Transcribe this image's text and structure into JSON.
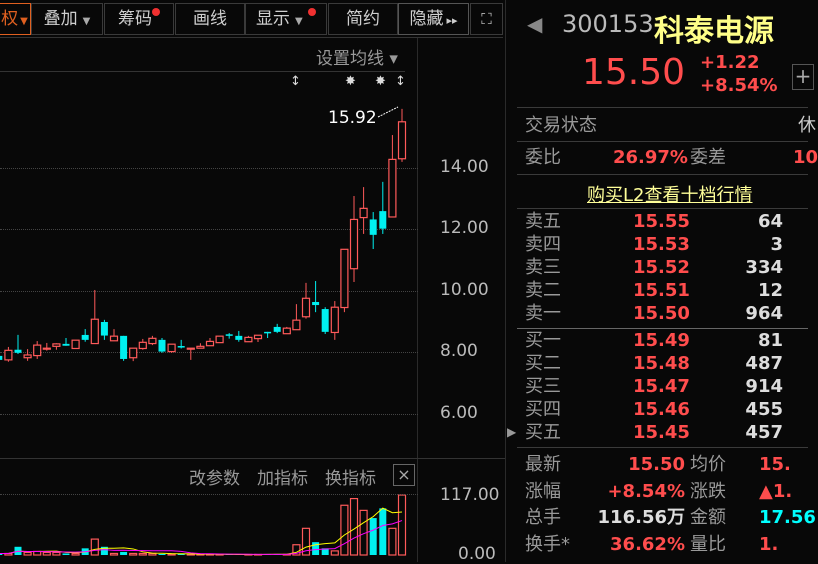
{
  "toolbar": {
    "items": [
      {
        "label": "权",
        "has_caret": true,
        "active": true
      },
      {
        "label": "叠加",
        "has_caret": true
      },
      {
        "label": "筹码",
        "has_dot": true
      },
      {
        "label": "画线"
      },
      {
        "label": "显示",
        "has_caret": true,
        "has_dot": true
      },
      {
        "label": "简约"
      },
      {
        "label": "隐藏",
        "suffix": "▸▸"
      }
    ],
    "fullscreen_icon": "expand-icon"
  },
  "chart": {
    "ma_setting": "设置均线 ▾",
    "high_marker": "15.92",
    "price_axis": [
      "14.00",
      "12.00",
      "10.00",
      "8.00",
      "6.00"
    ],
    "colors": {
      "up": "#ff5a5a",
      "down": "#00f0f0",
      "ma5": "#ffff00",
      "ma10": "#ff00ff"
    },
    "candles": [
      [
        7.9,
        7.77,
        7.9,
        7.64
      ],
      [
        7.77,
        8.08,
        8.19,
        7.71
      ],
      [
        8.1,
        8.0,
        8.58,
        7.96
      ],
      [
        7.84,
        7.93,
        8.12,
        7.74
      ],
      [
        7.91,
        8.25,
        8.38,
        7.8
      ],
      [
        8.13,
        8.15,
        8.32,
        8.07
      ],
      [
        8.21,
        8.29,
        8.31,
        8.1
      ],
      [
        8.29,
        8.23,
        8.48,
        8.23
      ],
      [
        8.14,
        8.41,
        8.41,
        8.14
      ],
      [
        8.58,
        8.42,
        8.77,
        8.36
      ],
      [
        8.3,
        9.09,
        10.04,
        8.3
      ],
      [
        9.0,
        8.56,
        9.07,
        8.42
      ],
      [
        8.39,
        8.54,
        8.77,
        8.39
      ],
      [
        8.55,
        7.8,
        8.55,
        7.74
      ],
      [
        7.84,
        8.15,
        8.15,
        7.73
      ],
      [
        8.14,
        8.34,
        8.45,
        8.1
      ],
      [
        8.3,
        8.47,
        8.55,
        8.25
      ],
      [
        8.42,
        8.04,
        8.48,
        8.0
      ],
      [
        8.04,
        8.28,
        8.28,
        8.0
      ],
      [
        8.22,
        8.17,
        8.42,
        8.14
      ],
      [
        8.12,
        8.15,
        8.15,
        7.77
      ],
      [
        8.15,
        8.21,
        8.31,
        8.15
      ],
      [
        8.23,
        8.37,
        8.48,
        8.23
      ],
      [
        8.33,
        8.54,
        8.54,
        8.33
      ],
      [
        8.6,
        8.58,
        8.64,
        8.46
      ],
      [
        8.55,
        8.42,
        8.71,
        8.36
      ],
      [
        8.36,
        8.5,
        8.55,
        8.36
      ],
      [
        8.46,
        8.57,
        8.57,
        8.35
      ],
      [
        8.68,
        8.66,
        8.68,
        8.48
      ],
      [
        8.84,
        8.68,
        8.94,
        8.64
      ],
      [
        8.62,
        8.8,
        8.84,
        8.62
      ],
      [
        8.75,
        9.06,
        9.58,
        8.75
      ],
      [
        9.17,
        9.77,
        10.27,
        9.11
      ],
      [
        9.65,
        9.55,
        10.33,
        9.32
      ],
      [
        9.42,
        8.68,
        9.48,
        8.61
      ],
      [
        8.66,
        9.48,
        9.68,
        8.42
      ],
      [
        9.47,
        11.36,
        11.36,
        9.32
      ],
      [
        10.73,
        12.33,
        13.09,
        10.3
      ],
      [
        12.39,
        12.69,
        13.38,
        11.86
      ],
      [
        12.33,
        11.83,
        12.57,
        11.37
      ],
      [
        12.6,
        12.03,
        13.55,
        11.86
      ],
      [
        12.41,
        14.28,
        15.07,
        12.41
      ],
      [
        14.3,
        15.5,
        15.92,
        14.2
      ]
    ],
    "volumes": [
      3,
      3,
      16,
      5,
      7,
      5,
      5,
      3,
      3,
      13,
      31,
      16,
      3,
      6,
      3,
      3,
      3,
      2,
      2,
      2,
      2,
      1,
      1,
      1,
      1,
      1,
      1,
      1,
      2,
      2,
      1,
      20,
      52,
      25,
      13,
      8,
      97,
      110,
      87,
      72,
      91,
      52,
      117
    ],
    "volume_axis": [
      "117.00",
      "0.00"
    ],
    "indicator_buttons": [
      "改参数",
      "加指标",
      "换指标"
    ]
  },
  "quote": {
    "code": "300153",
    "name": "科泰电源",
    "price": "15.50",
    "change": "+1.22",
    "change_pct": "+8.54%",
    "status_label": "交易状态",
    "status_value": "休",
    "wb_label": "委比",
    "wb_value": "26.97%",
    "wc_label": "委差",
    "wc_value": "10",
    "l2_link": "购买L2查看十档行情",
    "asks": [
      {
        "label": "卖五",
        "price": "15.55",
        "vol": "64"
      },
      {
        "label": "卖四",
        "price": "15.53",
        "vol": "3"
      },
      {
        "label": "卖三",
        "price": "15.52",
        "vol": "334"
      },
      {
        "label": "卖二",
        "price": "15.51",
        "vol": "12"
      },
      {
        "label": "卖一",
        "price": "15.50",
        "vol": "964"
      }
    ],
    "bids": [
      {
        "label": "买一",
        "price": "15.49",
        "vol": "81"
      },
      {
        "label": "买二",
        "price": "15.48",
        "vol": "487"
      },
      {
        "label": "买三",
        "price": "15.47",
        "vol": "914"
      },
      {
        "label": "买四",
        "price": "15.46",
        "vol": "455"
      },
      {
        "label": "买五",
        "price": "15.45",
        "vol": "457"
      }
    ],
    "stats": [
      {
        "l1": "最新",
        "v1": "15.50",
        "l2": "均价",
        "v2": "15."
      },
      {
        "l1": "涨幅",
        "v1": "+8.54%",
        "l2": "涨跌",
        "v2": "▲1."
      },
      {
        "l1": "总手",
        "v1": "116.56万",
        "l2": "金额",
        "v2": "17.56"
      },
      {
        "l1": "换手*",
        "v1": "36.62%",
        "l2": "量比",
        "v2": "1."
      }
    ]
  }
}
